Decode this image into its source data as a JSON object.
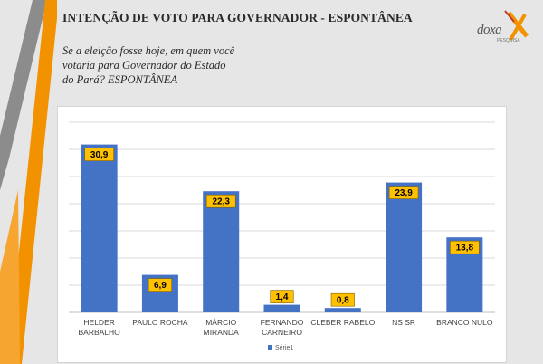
{
  "header": {
    "title": "INTENÇÃO DE VOTO PARA GOVERNADOR - ESPONTÂNEA",
    "logo_text": "doxa",
    "logo_sub": "PESQUISA"
  },
  "question_lines": [
    "Se a eleição fosse hoje, em quem você",
    "votaria para Governador do Estado",
    "do Pará? ESPONTÂNEA"
  ],
  "colors": {
    "bar": "#4472c4",
    "label_bg": "#ffc000",
    "accent_orange": "#f39200",
    "accent_gray": "#8c8c8c"
  },
  "chart_data": {
    "type": "bar",
    "categories": [
      [
        "HELDER",
        "BARBALHO"
      ],
      [
        "PAULO ROCHA"
      ],
      [
        "MÁRCIO",
        "MIRANDA"
      ],
      [
        "FERNANDO",
        "CARNEIRO"
      ],
      [
        "CLEBER RABELO"
      ],
      [
        "NS SR"
      ],
      [
        "BRANCO NULO"
      ]
    ],
    "series": [
      {
        "name": "Série1",
        "values": [
          30.9,
          6.9,
          22.3,
          1.4,
          0.8,
          23.9,
          13.8
        ]
      }
    ],
    "data_labels": [
      "30,9",
      "6,9",
      "22,3",
      "1,4",
      "0,8",
      "23,9",
      "13,8"
    ],
    "ylim": [
      0,
      35
    ],
    "grid": true,
    "legend": "bottom"
  }
}
